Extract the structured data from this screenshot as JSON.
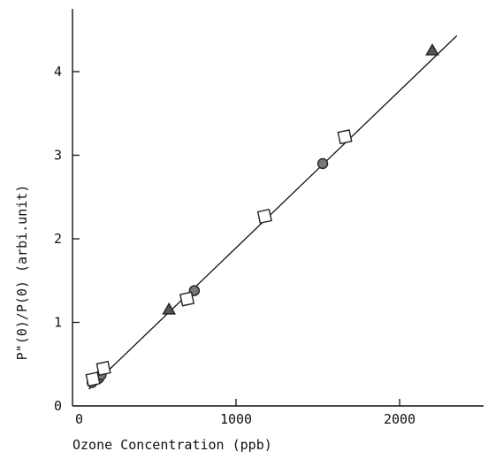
{
  "chart_data": {
    "type": "scatter",
    "title": "",
    "xlabel": "Ozone Concentration (ppb)",
    "ylabel": "P\"(0)/P(0) (arbi.unit)",
    "xlim": [
      0,
      2400
    ],
    "ylim": [
      0,
      4.6
    ],
    "grid": false,
    "x_ticks": [
      0,
      1000,
      2000
    ],
    "x_tick_labels": [
      "0",
      "1000",
      "2000"
    ],
    "y_ticks": [
      0,
      1,
      2,
      3,
      4
    ],
    "y_tick_labels": [
      "0",
      "1",
      "2",
      "3",
      "4"
    ],
    "fit_line": {
      "x": [
        100,
        2350
      ],
      "y": [
        0.2,
        4.43
      ]
    },
    "series": [
      {
        "marker": "circle",
        "x": [
          120,
          160,
          175,
          745,
          1530
        ],
        "y": [
          0.28,
          0.33,
          0.37,
          1.38,
          2.9
        ]
      },
      {
        "marker": "square",
        "x": [
          125,
          190,
          700,
          1175,
          1665
        ],
        "y": [
          0.32,
          0.45,
          1.28,
          2.27,
          3.22
        ]
      },
      {
        "marker": "triangle",
        "x": [
          590,
          2200
        ],
        "y": [
          1.15,
          4.25
        ]
      }
    ]
  }
}
